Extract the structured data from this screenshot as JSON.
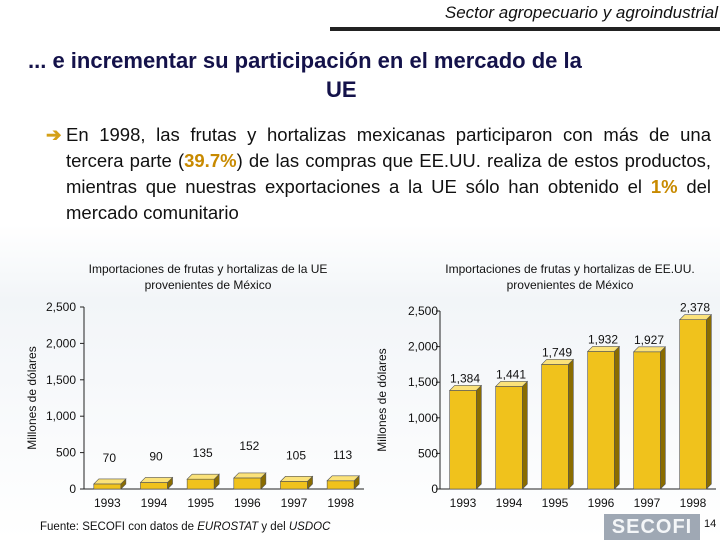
{
  "header": {
    "title": "Sector agropecuario y agroindustrial"
  },
  "slide": {
    "title_line1": "... e incrementar su participación en el mercado de la",
    "title_line2": "UE",
    "bullet_prefix": "En 1998, las frutas y hortalizas mexicanas participaron con más de una tercera parte (",
    "bullet_value1": "39.7%",
    "bullet_mid": ") de las compras que EE.UU. realiza de estos productos, mientras que nuestras exportaciones a la UE sólo han obtenido el ",
    "bullet_value2": "1%",
    "bullet_suffix": " del mercado comunitario"
  },
  "footnote": {
    "prefix": "Fuente: SECOFI con datos de ",
    "source1": "EUROSTAT",
    "middle": " y del ",
    "source2": "USDOC"
  },
  "logo": "SECOFI",
  "page_number": "14",
  "colors": {
    "bar": "#f0c21c",
    "bar_side": "#8a6c00",
    "bar_top": "#fbe27a",
    "accent": "#c88a00",
    "title": "#14124a"
  },
  "chart_data": [
    {
      "type": "bar",
      "title": "Importaciones de frutas y hortalizas de la UE provenientes de México",
      "ylabel": "Millones de dólares",
      "categories": [
        "1993",
        "1994",
        "1995",
        "1996",
        "1997",
        "1998"
      ],
      "values": [
        70,
        90,
        135,
        152,
        105,
        113
      ],
      "value_labels": [
        "70",
        "90",
        "135",
        "152",
        "105",
        "113"
      ],
      "ylim": [
        0,
        2500
      ],
      "yticks": [
        0,
        500,
        1000,
        1500,
        2000,
        2500
      ],
      "ytick_labels": [
        "0",
        "500",
        "1,000",
        "1,500",
        "2,000",
        "2,500"
      ]
    },
    {
      "type": "bar",
      "title": "Importaciones de frutas y hortalizas de EE.UU. provenientes de México",
      "ylabel": "Millones de dólares",
      "categories": [
        "1993",
        "1994",
        "1995",
        "1996",
        "1997",
        "1998"
      ],
      "values": [
        1384,
        1441,
        1749,
        1932,
        1927,
        2378
      ],
      "value_labels": [
        "1,384",
        "1,441",
        "1,749",
        "1,932",
        "1,927",
        "2,378"
      ],
      "ylim": [
        0,
        2500
      ],
      "yticks": [
        0,
        500,
        1000,
        1500,
        2000,
        2500
      ],
      "ytick_labels": [
        "0",
        "500",
        "1,000",
        "1,500",
        "2,000",
        "2,500"
      ]
    }
  ]
}
